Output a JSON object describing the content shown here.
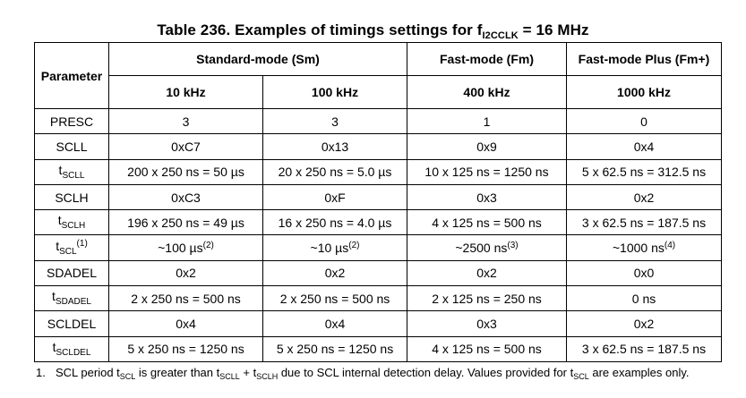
{
  "title": {
    "prefix": "Table 236. Examples of timings settings for f",
    "sub": "I2CCLK",
    "suffix": " = 16 MHz"
  },
  "header": {
    "parameter": "Parameter",
    "groups": [
      "Standard-mode (Sm)",
      "Fast-mode (Fm)",
      "Fast-mode Plus (Fm+)"
    ],
    "freqs": [
      "10 kHz",
      "100 kHz",
      "400 kHz",
      "1000 kHz"
    ]
  },
  "rows": [
    {
      "p_main": "PRESC",
      "p_sub": "",
      "p_sup": "",
      "cells": [
        {
          "v": "3",
          "sup": ""
        },
        {
          "v": "3",
          "sup": ""
        },
        {
          "v": "1",
          "sup": ""
        },
        {
          "v": "0",
          "sup": ""
        }
      ]
    },
    {
      "p_main": "SCLL",
      "p_sub": "",
      "p_sup": "",
      "cells": [
        {
          "v": "0xC7",
          "sup": ""
        },
        {
          "v": "0x13",
          "sup": ""
        },
        {
          "v": "0x9",
          "sup": ""
        },
        {
          "v": "0x4",
          "sup": ""
        }
      ]
    },
    {
      "p_main": "t",
      "p_sub": "SCLL",
      "p_sup": "",
      "cells": [
        {
          "v": "200 x 250 ns = 50 µs",
          "sup": ""
        },
        {
          "v": "20 x 250 ns = 5.0 µs",
          "sup": ""
        },
        {
          "v": "10 x 125 ns = 1250 ns",
          "sup": ""
        },
        {
          "v": "5 x 62.5 ns = 312.5 ns",
          "sup": ""
        }
      ]
    },
    {
      "p_main": "SCLH",
      "p_sub": "",
      "p_sup": "",
      "cells": [
        {
          "v": "0xC3",
          "sup": ""
        },
        {
          "v": "0xF",
          "sup": ""
        },
        {
          "v": "0x3",
          "sup": ""
        },
        {
          "v": "0x2",
          "sup": ""
        }
      ]
    },
    {
      "p_main": "t",
      "p_sub": "SCLH",
      "p_sup": "",
      "cells": [
        {
          "v": "196 x 250 ns = 49 µs",
          "sup": ""
        },
        {
          "v": "16 x 250 ns = 4.0 µs",
          "sup": ""
        },
        {
          "v": "4 x 125 ns = 500 ns",
          "sup": ""
        },
        {
          "v": "3 x 62.5 ns = 187.5 ns",
          "sup": ""
        }
      ]
    },
    {
      "p_main": "t",
      "p_sub": "SCL",
      "p_sup": "(1)",
      "cells": [
        {
          "v": "~100 µs",
          "sup": "(2)"
        },
        {
          "v": "~10 µs",
          "sup": "(2)"
        },
        {
          "v": "~2500 ns",
          "sup": "(3)"
        },
        {
          "v": "~1000 ns",
          "sup": "(4)"
        }
      ]
    },
    {
      "p_main": "SDADEL",
      "p_sub": "",
      "p_sup": "",
      "cells": [
        {
          "v": "0x2",
          "sup": ""
        },
        {
          "v": "0x2",
          "sup": ""
        },
        {
          "v": "0x2",
          "sup": ""
        },
        {
          "v": "0x0",
          "sup": ""
        }
      ]
    },
    {
      "p_main": "t",
      "p_sub": "SDADEL",
      "p_sup": "",
      "cells": [
        {
          "v": "2 x 250 ns = 500 ns",
          "sup": ""
        },
        {
          "v": "2 x 250 ns = 500 ns",
          "sup": ""
        },
        {
          "v": "2 x 125 ns = 250 ns",
          "sup": ""
        },
        {
          "v": "0 ns",
          "sup": ""
        }
      ]
    },
    {
      "p_main": "SCLDEL",
      "p_sub": "",
      "p_sup": "",
      "cells": [
        {
          "v": "0x4",
          "sup": ""
        },
        {
          "v": "0x4",
          "sup": ""
        },
        {
          "v": "0x3",
          "sup": ""
        },
        {
          "v": "0x2",
          "sup": ""
        }
      ]
    },
    {
      "p_main": "t",
      "p_sub": "SCLDEL",
      "p_sup": "",
      "cells": [
        {
          "v": "5 x 250 ns = 1250 ns",
          "sup": ""
        },
        {
          "v": "5 x 250 ns = 1250 ns",
          "sup": ""
        },
        {
          "v": "4 x 125 ns = 500 ns",
          "sup": ""
        },
        {
          "v": "3 x 62.5 ns = 187.5 ns",
          "sup": ""
        }
      ]
    }
  ],
  "footnote": {
    "number": "1.",
    "segments": [
      {
        "text": "SCL period t",
        "sub": false
      },
      {
        "text": "SCL",
        "sub": true
      },
      {
        "text": " is greater than t",
        "sub": false
      },
      {
        "text": "SCLL",
        "sub": true
      },
      {
        "text": " + t",
        "sub": false
      },
      {
        "text": "SCLH",
        "sub": true
      },
      {
        "text": " due to SCL internal detection delay. Values provided for t",
        "sub": false
      },
      {
        "text": "SCL",
        "sub": true
      },
      {
        "text": " are examples only.",
        "sub": false
      }
    ]
  }
}
